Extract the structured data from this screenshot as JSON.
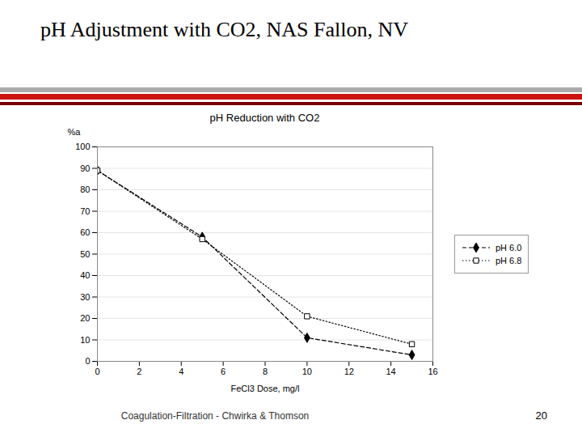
{
  "chart_data": {
    "type": "line",
    "title": "pH Adjustment with CO2, NAS Fallon, NV",
    "subtitle": "pH Reduction with CO2",
    "annotations": [
      "Coagulation-Filtration - Chwirka & Thomson",
      "20"
    ],
    "xlabel": "FeCl3 Dose, mg/l",
    "ylabel": "%a",
    "x": [
      0,
      5,
      10,
      15
    ],
    "series": [
      {
        "name": "pH 6.0",
        "color": "#000000",
        "values": [
          89,
          58,
          11,
          3
        ],
        "marker": "diamond",
        "line_style": "dashed"
      },
      {
        "name": "pH 6.8",
        "color": "#000000",
        "values": [
          89,
          57,
          21,
          8
        ],
        "marker": "square",
        "line_style": "dotted"
      }
    ],
    "xlim": [
      0,
      16
    ],
    "ylim": [
      0,
      100
    ],
    "xticks": [
      0,
      2,
      4,
      6,
      8,
      10,
      12,
      14,
      16
    ],
    "yticks": [
      0,
      10,
      20,
      30,
      40,
      50,
      60,
      70,
      80,
      90,
      100
    ],
    "grid": "y",
    "legend": "right"
  }
}
